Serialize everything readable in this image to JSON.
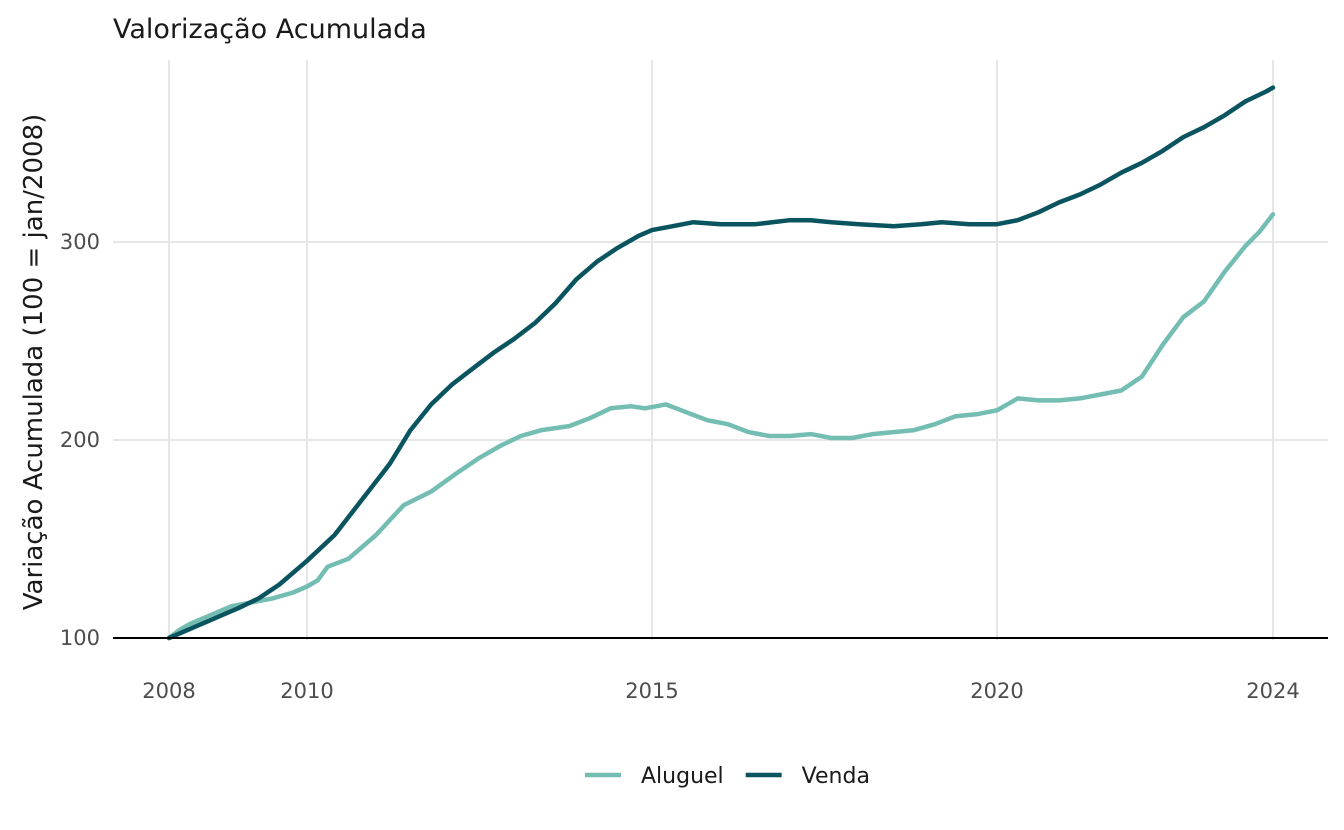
{
  "chart_data": {
    "type": "line",
    "title": "Valorização Acumulada",
    "xlabel": "",
    "ylabel": "Variação Acumulada (100 = jan/2008)",
    "xlim": [
      2008,
      2024
    ],
    "ylim": [
      100,
      380
    ],
    "x_ticks": [
      "2008",
      "2010",
      "2015",
      "2020",
      "2024"
    ],
    "y_ticks": [
      "100",
      "200",
      "300"
    ],
    "baseline": 100,
    "grid": true,
    "legend_position": "bottom",
    "series": [
      {
        "name": "Aluguel",
        "color": "#74bdb2",
        "x": [
          2008.0,
          2008.15,
          2008.3,
          2008.5,
          2008.7,
          2008.9,
          2009.2,
          2009.5,
          2009.8,
          2010.0,
          2010.15,
          2010.3,
          2010.6,
          2011.0,
          2011.4,
          2011.8,
          2012.2,
          2012.5,
          2012.8,
          2013.1,
          2013.4,
          2013.8,
          2014.1,
          2014.4,
          2014.7,
          2014.9,
          2015.2,
          2015.5,
          2015.8,
          2016.1,
          2016.4,
          2016.7,
          2017.0,
          2017.3,
          2017.6,
          2017.9,
          2018.2,
          2018.5,
          2018.8,
          2019.1,
          2019.4,
          2019.7,
          2020.0,
          2020.3,
          2020.6,
          2020.9,
          2021.2,
          2021.5,
          2021.8,
          2022.1,
          2022.4,
          2022.7,
          2023.0,
          2023.3,
          2023.6,
          2023.8,
          2024.0
        ],
        "values": [
          100,
          104,
          107,
          110,
          113,
          116,
          118,
          120,
          123,
          126,
          129,
          136,
          140,
          152,
          167,
          174,
          184,
          191,
          197,
          202,
          205,
          207,
          211,
          216,
          217,
          216,
          218,
          214,
          210,
          208,
          204,
          202,
          202,
          203,
          201,
          201,
          203,
          204,
          205,
          208,
          212,
          213,
          215,
          221,
          220,
          220,
          221,
          223,
          225,
          232,
          248,
          262,
          270,
          285,
          298,
          305,
          314
        ]
      },
      {
        "name": "Venda",
        "color": "#0a5460",
        "x": [
          2008.0,
          2008.2,
          2008.4,
          2008.6,
          2008.8,
          2009.0,
          2009.3,
          2009.6,
          2010.0,
          2010.4,
          2010.8,
          2011.2,
          2011.5,
          2011.8,
          2012.1,
          2012.4,
          2012.7,
          2013.0,
          2013.3,
          2013.6,
          2013.9,
          2014.2,
          2014.5,
          2014.8,
          2015.0,
          2015.3,
          2015.6,
          2016.0,
          2016.5,
          2017.0,
          2017.3,
          2017.6,
          2018.0,
          2018.5,
          2018.9,
          2019.2,
          2019.6,
          2020.0,
          2020.3,
          2020.6,
          2020.9,
          2021.2,
          2021.5,
          2021.8,
          2022.1,
          2022.4,
          2022.7,
          2023.0,
          2023.3,
          2023.6,
          2023.9,
          2024.0
        ],
        "values": [
          100,
          103,
          106,
          109,
          112,
          115,
          120,
          127,
          139,
          152,
          170,
          188,
          205,
          218,
          228,
          236,
          244,
          251,
          259,
          269,
          281,
          290,
          297,
          303,
          306,
          308,
          310,
          309,
          309,
          311,
          311,
          310,
          309,
          308,
          309,
          310,
          309,
          309,
          311,
          315,
          320,
          324,
          329,
          335,
          340,
          346,
          353,
          358,
          364,
          371,
          376,
          378
        ]
      }
    ]
  }
}
